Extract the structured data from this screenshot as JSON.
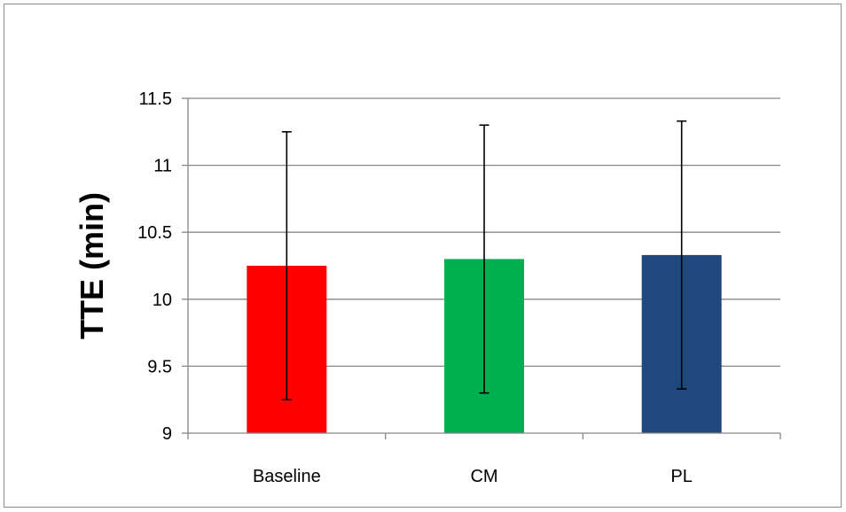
{
  "chart_data": {
    "type": "bar",
    "title": "",
    "xlabel": "",
    "ylabel": "TTE (min)",
    "categories": [
      "Baseline",
      "CM",
      "PL"
    ],
    "values": [
      10.25,
      10.3,
      10.33
    ],
    "error_upper": [
      11.25,
      11.3,
      11.33
    ],
    "error_lower": [
      9.25,
      9.3,
      9.33
    ],
    "ylim": [
      9,
      11.5
    ],
    "yticks": [
      9,
      9.5,
      10,
      10.5,
      11,
      11.5
    ],
    "ytick_labels": [
      "9",
      "9.5",
      "10",
      "10.5",
      "11",
      "11.5"
    ],
    "grid": true,
    "legend": "none",
    "bar_colors": [
      "#ff0000",
      "#00b050",
      "#1f497d"
    ],
    "gridline_color": "#868686",
    "error_bar_color": "#000000"
  }
}
